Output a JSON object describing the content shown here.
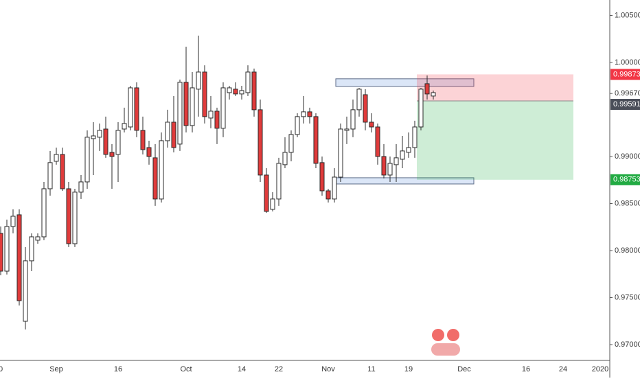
{
  "chart_data": {
    "type": "candlestick",
    "categories": [
      "0",
      null,
      null,
      null,
      null,
      null,
      null,
      null,
      null,
      "Sep",
      null,
      null,
      null,
      null,
      null,
      null,
      null,
      null,
      null,
      "16",
      null,
      null,
      null,
      null,
      null,
      null,
      null,
      null,
      null,
      null,
      "Oct",
      null,
      null,
      null,
      null,
      null,
      null,
      null,
      null,
      "14",
      null,
      null,
      null,
      null,
      null,
      "22",
      null,
      null,
      null,
      null,
      null,
      null,
      null,
      "Nov",
      null,
      null,
      null,
      null,
      null,
      null,
      "11",
      null,
      null,
      null,
      null,
      null,
      "19",
      null,
      null,
      null,
      null,
      null,
      null,
      null,
      null,
      "Dec",
      null,
      null,
      null,
      null,
      null,
      null,
      null,
      null,
      null,
      "16",
      null,
      null,
      null,
      null,
      null,
      "24",
      null,
      null,
      null,
      null,
      null,
      "2020"
    ],
    "open": [
      0.98183,
      0.97781,
      0.98256,
      0.9838,
      0.97248,
      0.97891,
      0.9811,
      0.98146,
      0.98657,
      0.98949,
      0.99022,
      0.98657,
      0.98073,
      0.98621,
      0.9873,
      0.9919,
      0.99205,
      0.99292,
      0.99044,
      0.99022,
      0.99292,
      0.99314,
      0.9973,
      0.99278,
      0.99095,
      0.98986,
      0.98548,
      0.99168,
      0.99365,
      0.99132,
      0.99789,
      0.99329,
      0.99716,
      0.99898,
      0.99409,
      0.99482,
      0.993,
      0.99679,
      0.99716,
      0.99665,
      0.99679,
      0.99898,
      0.99497,
      0.98803,
      0.98438,
      0.98548,
      0.98913,
      0.99044,
      0.99234,
      0.99424,
      0.99475,
      0.99424,
      0.98935,
      0.98635,
      0.98548,
      0.98781,
      0.99278,
      0.99292,
      0.99497,
      0.99657,
      0.99365,
      0.99314,
      0.99,
      0.98803,
      0.98913,
      0.98971,
      0.99044,
      0.99095,
      0.99314,
      0.99774,
      0.99643,
      null,
      null,
      null,
      null,
      null,
      null,
      null,
      null,
      null,
      null,
      null,
      null,
      null,
      null,
      null,
      null,
      null,
      null,
      null,
      null,
      null,
      null,
      null,
      null,
      null,
      null,
      null
    ],
    "high": [
      0.98256,
      0.98329,
      0.98438,
      0.98438,
      0.98037,
      0.98183,
      0.98183,
      0.9873,
      0.99059,
      0.99095,
      0.99095,
      0.9873,
      0.98657,
      0.98803,
      0.99278,
      0.99365,
      0.99351,
      0.99424,
      0.99132,
      0.99365,
      0.99519,
      0.99752,
      0.99789,
      0.99424,
      0.99168,
      0.99132,
      0.99256,
      0.99497,
      0.99643,
      0.99818,
      1.00168,
      0.99898,
      1.00285,
      0.9997,
      0.99643,
      0.99519,
      0.99789,
      0.99752,
      0.99789,
      0.99752,
      0.9997,
      0.99935,
      0.99606,
      0.98876,
      0.98621,
      0.98986,
      0.99205,
      0.99278,
      0.9946,
      0.99643,
      0.99519,
      0.9946,
      0.99,
      0.98657,
      0.98876,
      0.99351,
      0.99424,
      0.99606,
      0.9973,
      0.99716,
      0.9946,
      0.99351,
      0.99132,
      0.99,
      0.99132,
      0.99219,
      0.99256,
      0.9938,
      0.9973,
      0.99862,
      0.99701,
      null,
      null,
      null,
      null,
      null,
      null,
      null,
      null,
      null,
      null,
      null,
      null,
      null,
      null,
      null,
      null,
      null,
      null,
      null,
      null,
      null,
      null,
      null,
      null,
      null,
      null,
      null
    ],
    "low": [
      0.97737,
      0.97745,
      0.98183,
      0.97416,
      0.97161,
      0.97781,
      0.98073,
      0.9811,
      0.98584,
      0.98913,
      0.98635,
      0.98037,
      0.98037,
      0.98548,
      0.98657,
      0.98803,
      0.99059,
      0.98986,
      0.98657,
      0.9873,
      0.99256,
      0.99278,
      0.99205,
      0.99022,
      0.98913,
      0.98475,
      0.98511,
      0.99095,
      0.99044,
      0.99059,
      0.99256,
      0.99256,
      0.99424,
      0.99351,
      0.993,
      0.99132,
      0.99205,
      0.99606,
      0.99643,
      0.99606,
      0.99643,
      0.99424,
      0.9873,
      0.984,
      0.98416,
      0.98475,
      0.98876,
      0.98949,
      0.99205,
      0.99351,
      0.99351,
      0.98876,
      0.98584,
      0.98511,
      0.98511,
      0.9873,
      0.99132,
      0.99205,
      0.99424,
      0.99278,
      0.99256,
      0.98913,
      0.98767,
      0.9873,
      0.9873,
      0.98876,
      0.98986,
      0.98986,
      0.99278,
      0.99606,
      0.99606,
      null,
      null,
      null,
      null,
      null,
      null,
      null,
      null,
      null,
      null,
      null,
      null,
      null,
      null,
      null,
      null,
      null,
      null,
      null,
      null,
      null,
      null,
      null,
      null,
      null,
      null,
      null
    ],
    "close": [
      0.97781,
      0.98256,
      0.98365,
      0.97467,
      0.97891,
      0.98146,
      0.98146,
      0.98657,
      0.98935,
      0.99022,
      0.98657,
      0.98073,
      0.98621,
      0.9873,
      0.99205,
      0.99219,
      0.99278,
      0.99022,
      0.99,
      0.99278,
      0.99351,
      0.9973,
      0.99278,
      0.99073,
      0.99,
      0.98548,
      0.99168,
      0.99365,
      0.99095,
      0.99789,
      0.99329,
      0.9973,
      0.99898,
      0.99424,
      0.99482,
      0.993,
      0.9973,
      0.9973,
      0.99665,
      0.99701,
      0.99898,
      0.99497,
      0.98803,
      0.98416,
      0.98548,
      0.98927,
      0.99044,
      0.99234,
      0.99424,
      0.99475,
      0.99424,
      0.98927,
      0.98635,
      0.98548,
      0.98781,
      0.99292,
      0.99292,
      0.99497,
      0.99716,
      0.99365,
      0.99314,
      0.99,
      0.98803,
      0.98927,
      0.98986,
      0.99059,
      0.99095,
      0.99314,
      0.99716,
      0.99665,
      0.99679,
      null,
      null,
      null,
      null,
      null,
      null,
      null,
      null,
      null,
      null,
      null,
      null,
      null,
      null,
      null,
      null,
      null,
      null,
      null,
      null,
      null,
      null,
      null,
      null,
      null,
      null,
      null
    ],
    "up_color": "#ffffff",
    "down_color": "#e03b3b",
    "border_color": "#2a2a2a",
    "ylim": [
      0.96832,
      1.00664
    ],
    "yticks": [
      {
        "value": 0.97,
        "label": "0.97000"
      },
      {
        "value": 0.975,
        "label": "0.97500"
      },
      {
        "value": 0.98,
        "label": "0.98000"
      },
      {
        "value": 0.985,
        "label": "0.98500"
      },
      {
        "value": 0.99,
        "label": "0.99000"
      },
      {
        "value": 0.9967,
        "label": "0.99670"
      },
      {
        "value": 1.0,
        "label": "1.00000"
      },
      {
        "value": 1.005,
        "label": "1.00500"
      }
    ],
    "zones": [
      {
        "high": 0.99826,
        "low": 0.99745
      },
      {
        "high": 0.98774,
        "low": 0.98708
      }
    ],
    "zone_color": "#dbe6f7",
    "position": {
      "stop": 0.99873,
      "entry": 0.99591,
      "target": 0.98753,
      "stop_color": "#f23645",
      "entry_color": "#4a4e59",
      "target_color": "#22ab43"
    }
  }
}
